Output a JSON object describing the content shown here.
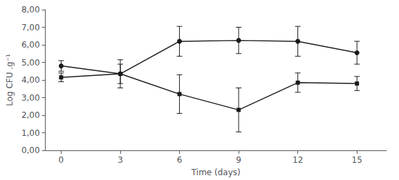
{
  "chart_data": {
    "type": "line",
    "xlabel": "Time (days)",
    "ylabel": "Log CFU .g⁻¹",
    "x": [
      0,
      3,
      6,
      9,
      12,
      15
    ],
    "series": [
      {
        "color": "#1a1a1a",
        "marker": "circle",
        "line_style": "solid",
        "values": [
          4.8,
          4.35,
          6.2,
          6.25,
          6.2,
          5.55
        ],
        "yerr": [
          0.3,
          0.8,
          0.85,
          0.75,
          0.85,
          0.65
        ]
      },
      {
        "color": "#1a1a1a",
        "marker": "square",
        "line_style": "solid",
        "values": [
          4.15,
          4.35,
          3.2,
          2.3,
          3.85,
          3.8
        ],
        "yerr": [
          0.25,
          0.55,
          1.1,
          1.25,
          0.55,
          0.4
        ]
      }
    ],
    "xlim": [
      -0.8,
      16.5
    ],
    "ylim": [
      0.0,
      8.0
    ],
    "xticks": [
      0,
      3,
      6,
      9,
      12,
      15
    ],
    "yticks": [
      {
        "value": 0.0,
        "label": "0,00"
      },
      {
        "value": 1.0,
        "label": "1,00"
      },
      {
        "value": 2.0,
        "label": "2,00"
      },
      {
        "value": 3.0,
        "label": "3,00"
      },
      {
        "value": 4.0,
        "label": "4,00"
      },
      {
        "value": 5.0,
        "label": "5,00"
      },
      {
        "value": 6.0,
        "label": "6,00"
      },
      {
        "value": 7.0,
        "label": "7,00"
      },
      {
        "value": 8.0,
        "label": "8,00"
      }
    ],
    "grid": false
  }
}
